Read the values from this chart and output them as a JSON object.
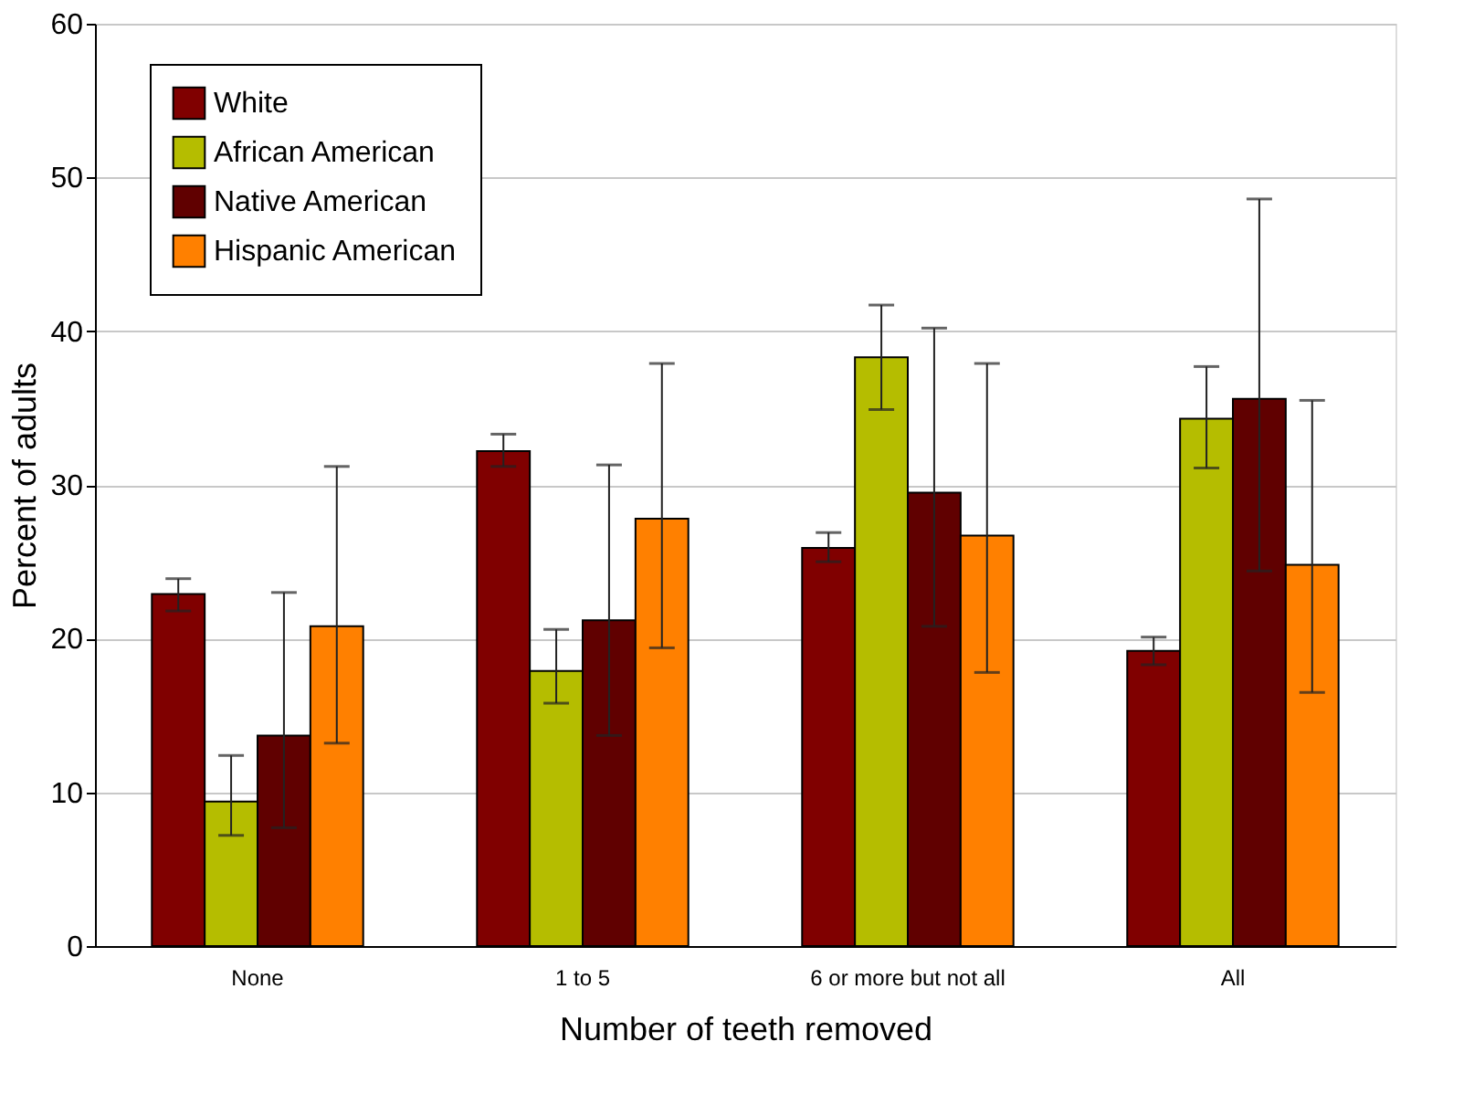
{
  "chart_data": {
    "type": "bar",
    "xlabel": "Number of teeth removed",
    "ylabel": "Percent of adults",
    "categories": [
      "None",
      "1 to 5",
      "6 or more but not all",
      "All"
    ],
    "series": [
      {
        "name": "White",
        "color": "#800000",
        "values": [
          22.9,
          32.2,
          25.9,
          19.2
        ],
        "errors": [
          [
            21.8,
            23.9
          ],
          [
            31.2,
            33.3
          ],
          [
            25.0,
            26.9
          ],
          [
            18.3,
            20.1
          ]
        ]
      },
      {
        "name": "African American",
        "color": "#b5bd00",
        "values": [
          9.4,
          17.9,
          38.3,
          34.3
        ],
        "errors": [
          [
            7.2,
            12.4
          ],
          [
            15.8,
            20.6
          ],
          [
            34.9,
            41.7
          ],
          [
            31.1,
            37.7
          ]
        ]
      },
      {
        "name": "Native American",
        "color": "#600000",
        "values": [
          13.7,
          21.2,
          29.5,
          35.6
        ],
        "errors": [
          [
            7.7,
            23.0
          ],
          [
            13.7,
            31.3
          ],
          [
            20.8,
            40.2
          ],
          [
            24.4,
            48.6
          ]
        ]
      },
      {
        "name": "Hispanic American",
        "color": "#ff8000",
        "values": [
          20.8,
          27.8,
          26.7,
          24.8
        ],
        "errors": [
          [
            13.2,
            31.2
          ],
          [
            19.4,
            37.9
          ],
          [
            17.8,
            37.9
          ],
          [
            16.5,
            35.5
          ]
        ]
      }
    ],
    "ylim": [
      0,
      60
    ],
    "yticks": [
      0,
      10,
      20,
      30,
      40,
      50,
      60
    ],
    "grid": "y",
    "legend": "top left"
  }
}
